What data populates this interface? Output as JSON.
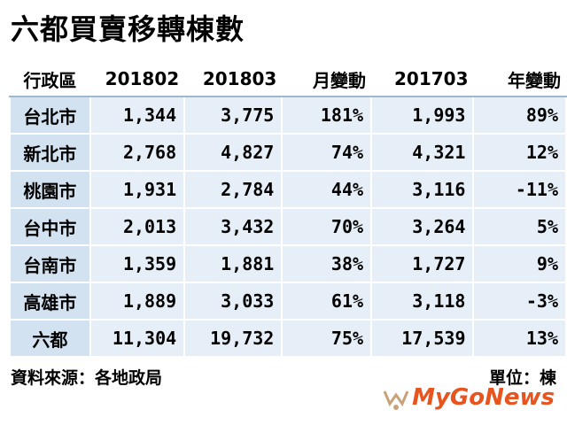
{
  "header": {
    "title": "六都買賣移轉棟數"
  },
  "table": {
    "columns": [
      "行政區",
      "201802",
      "201803",
      "月變動",
      "201703",
      "年變動"
    ],
    "rows": [
      [
        "台北市",
        "1,344",
        "3,775",
        "181%",
        "1,993",
        "89%"
      ],
      [
        "新北市",
        "2,768",
        "4,827",
        "74%",
        "4,321",
        "12%"
      ],
      [
        "桃園市",
        "1,931",
        "2,784",
        "44%",
        "3,116",
        "-11%"
      ],
      [
        "台中市",
        "2,013",
        "3,432",
        "70%",
        "3,264",
        "5%"
      ],
      [
        "台南市",
        "1,359",
        "1,881",
        "38%",
        "1,727",
        "9%"
      ],
      [
        "高雄市",
        "1,889",
        "3,033",
        "61%",
        "3,118",
        "-3%"
      ],
      [
        "六都",
        "11,304",
        "19,732",
        "75%",
        "17,539",
        "13%"
      ]
    ]
  },
  "footer": {
    "source": "資料來源：各地政局",
    "unit": "單位：棟",
    "logo": "MyGoNews"
  }
}
